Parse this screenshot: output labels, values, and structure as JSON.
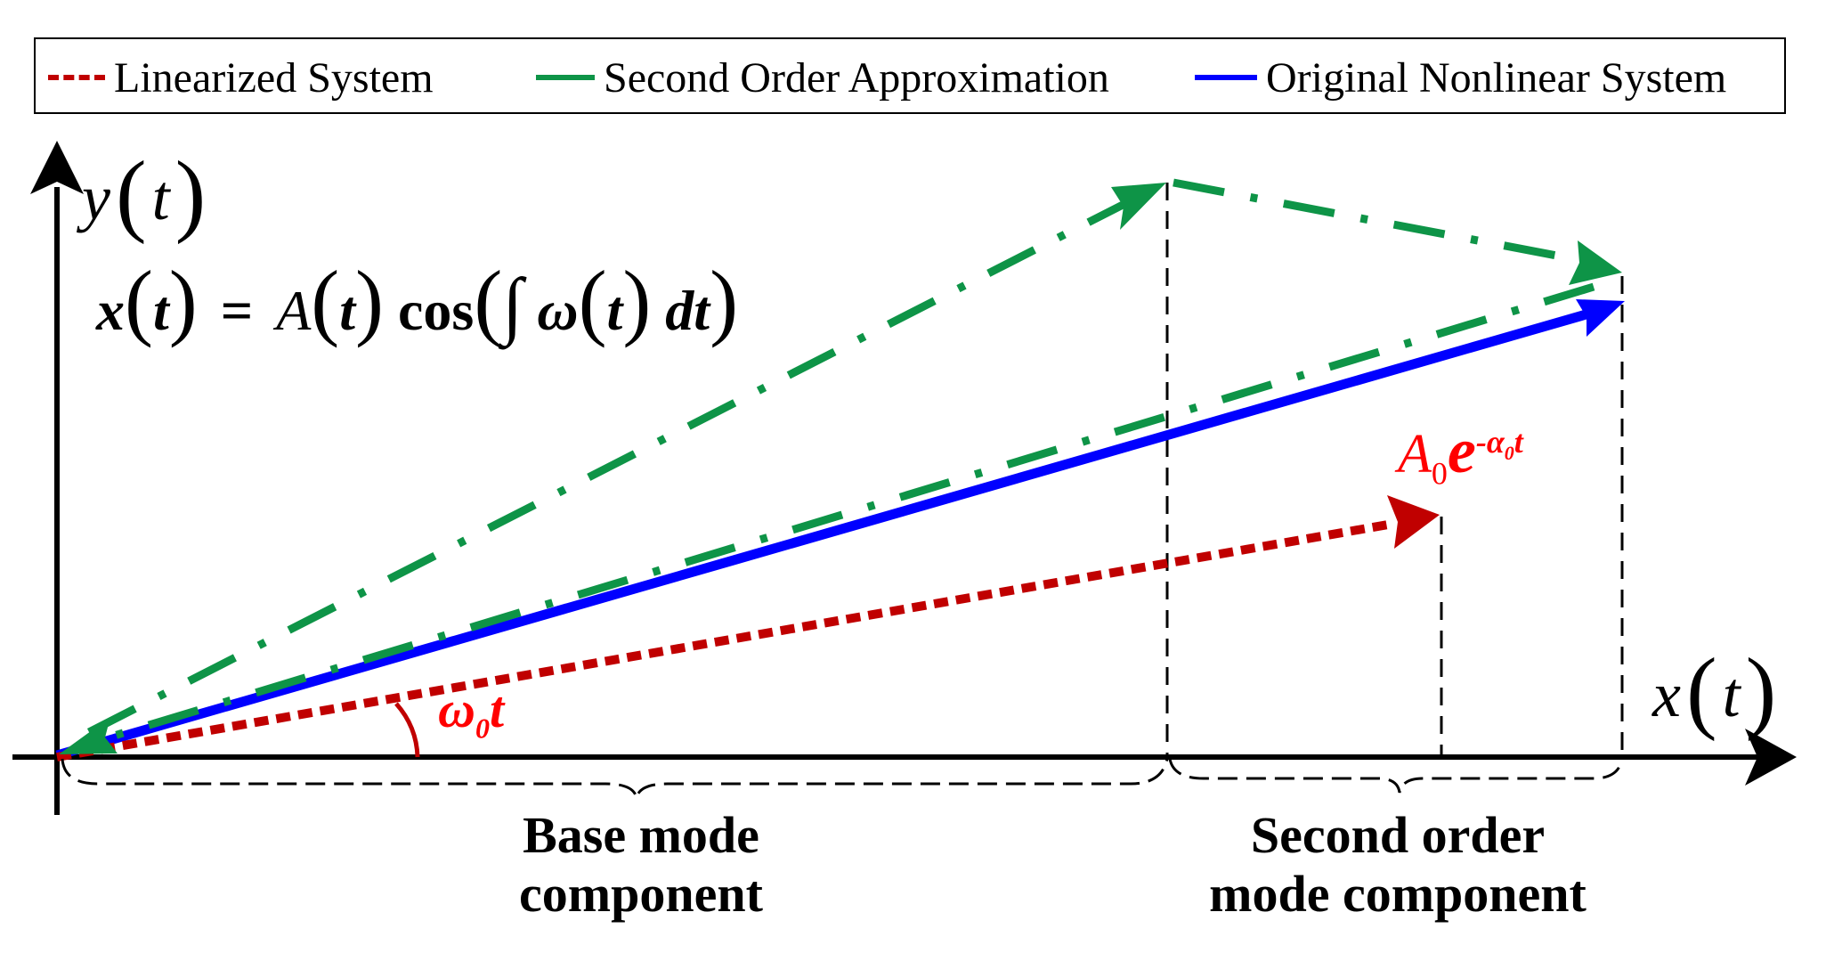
{
  "legend": {
    "linearized": "Linearized System",
    "second_order": "Second Order Approximation",
    "original": "Original Nonlinear System"
  },
  "colors": {
    "linearized": "#c00000",
    "second_order": "#0e9447",
    "original": "#0000ff",
    "annotation": "#ff0000",
    "axis": "#000000"
  },
  "axes": {
    "y_label_var": "y",
    "x_label_var": "x",
    "arg": "t"
  },
  "equation": {
    "x": "x",
    "t1": "t",
    "equals": "=",
    "A": "A",
    "t2": "t",
    "cos": "cos",
    "integral": "∫",
    "omega": "ω",
    "t3": "t",
    "dt": "dt"
  },
  "annotations": {
    "angle_omega": "ω",
    "angle_sub": "0",
    "angle_t": "t",
    "amp_A": "A",
    "amp_A_sub": "0",
    "amp_e": "e",
    "amp_exp": "-α",
    "amp_exp_sub": "0",
    "amp_exp_t": "t"
  },
  "braces": {
    "base_line1": "Base mode",
    "base_line2": "component",
    "second_line1": "Second order",
    "second_line2": "mode component"
  }
}
